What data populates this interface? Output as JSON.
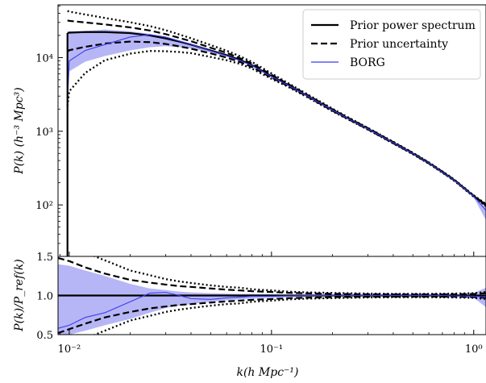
{
  "chart_data": [
    {
      "type": "line",
      "panel": "top",
      "xlabel": "",
      "ylabel": "P(k) (h⁻³ Mpc³)",
      "x_scale": "log",
      "y_scale": "log",
      "xlim": [
        0.0088,
        1.15
      ],
      "ylim": [
        20,
        52000
      ],
      "y_tick_labels": [
        "10²",
        "10³",
        "10⁴"
      ],
      "grid": false,
      "legend_position": "top-right",
      "x": [
        0.0098,
        0.01,
        0.012,
        0.015,
        0.02,
        0.025,
        0.03,
        0.035,
        0.04,
        0.05,
        0.06,
        0.07,
        0.08,
        0.1,
        0.12,
        0.15,
        0.2,
        0.25,
        0.3,
        0.4,
        0.5,
        0.6,
        0.7,
        0.8,
        1.0,
        1.15
      ],
      "series": [
        {
          "name": "Prior power spectrum",
          "style": "solid",
          "color": "#000000",
          "values": [
            21500,
            21800,
            22200,
            22200,
            21500,
            20000,
            18200,
            16500,
            15000,
            12500,
            10800,
            9300,
            7900,
            5600,
            4300,
            3050,
            1950,
            1400,
            1080,
            700,
            500,
            370,
            280,
            218,
            132,
            100
          ]
        },
        {
          "name": "Prior uncertainty",
          "style": "dashed",
          "color": "#000000",
          "values_upper": [
            32000,
            31500,
            30000,
            28200,
            25700,
            23300,
            20800,
            18500,
            16700,
            13600,
            11600,
            9800,
            8300,
            5850,
            4420,
            3120,
            1990,
            1425,
            1100,
            712,
            507,
            374,
            283,
            220,
            133,
            100
          ],
          "values_lower": [
            12000,
            12600,
            14000,
            15500,
            16500,
            16200,
            15300,
            14200,
            13200,
            11400,
            10000,
            8700,
            7450,
            5350,
            4150,
            2970,
            1900,
            1375,
            1060,
            688,
            493,
            366,
            277,
            216,
            131,
            99
          ]
        },
        {
          "name": "",
          "style": "dotted",
          "color": "#000000",
          "values_upper": [
            43000,
            42000,
            38500,
            34500,
            30200,
            26800,
            23500,
            20600,
            18300,
            14800,
            12400,
            10400,
            8750,
            6100,
            4550,
            3200,
            2030,
            1450,
            1110,
            720,
            512,
            378,
            286,
            222,
            135,
            103
          ],
          "values_lower": [
            2200,
            3500,
            6200,
            9200,
            11300,
            12300,
            12200,
            11900,
            11500,
            10200,
            9200,
            8200,
            7100,
            5150,
            4050,
            2910,
            1870,
            1360,
            1050,
            682,
            488,
            362,
            274,
            213,
            129,
            96
          ]
        },
        {
          "name": "BORG",
          "style": "solid",
          "color": "#3b3bf0",
          "band_color": "#a9a9f5",
          "values": [
            2500,
            9000,
            12500,
            15000,
            19000,
            20500,
            19000,
            16800,
            15200,
            12300,
            10600,
            9100,
            7800,
            5500,
            4250,
            3030,
            1940,
            1395,
            1075,
            698,
            498,
            369,
            279,
            217,
            131,
            84
          ],
          "band_upper": [
            22500,
            22800,
            23000,
            24000,
            22800,
            21000,
            18500,
            16300,
            14800,
            12300,
            10600,
            9150,
            7850,
            5580,
            4300,
            3060,
            1960,
            1410,
            1090,
            705,
            505,
            374,
            284,
            222,
            135,
            106
          ],
          "band_lower": [
            2300,
            6500,
            8800,
            10500,
            12500,
            13800,
            14300,
            13900,
            13300,
            11700,
            10300,
            8900,
            7700,
            5450,
            4200,
            3000,
            1920,
            1385,
            1070,
            694,
            495,
            365,
            275,
            212,
            126,
            62
          ]
        }
      ]
    },
    {
      "type": "line",
      "panel": "bottom",
      "xlabel": "k(h Mpc⁻¹)",
      "ylabel": "P(k)/P_ref(k)",
      "x_scale": "log",
      "y_scale": "linear",
      "xlim": [
        0.0088,
        1.15
      ],
      "ylim": [
        0.5,
        1.5
      ],
      "x_tick_labels": [
        "10⁻²",
        "10⁻¹",
        "10⁰"
      ],
      "y_ticks": [
        0.5,
        1.0,
        1.5
      ],
      "y_tick_labels": [
        "0.5",
        "1.0",
        "1.5"
      ],
      "grid": false,
      "x": [
        0.0088,
        0.01,
        0.012,
        0.015,
        0.02,
        0.025,
        0.03,
        0.035,
        0.04,
        0.05,
        0.06,
        0.07,
        0.08,
        0.1,
        0.12,
        0.15,
        0.2,
        0.25,
        0.3,
        0.4,
        0.5,
        0.6,
        0.7,
        0.8,
        1.0,
        1.15
      ],
      "series": [
        {
          "name": "Prior power spectrum",
          "style": "solid",
          "color": "#000000",
          "values": [
            1.0,
            1.0,
            1.0,
            1.0,
            1.0,
            1.0,
            1.0,
            1.0,
            1.0,
            1.0,
            1.0,
            1.0,
            1.0,
            1.0,
            1.0,
            1.0,
            1.0,
            1.0,
            1.0,
            1.0,
            1.0,
            1.0,
            1.0,
            1.0,
            1.0,
            1.0
          ]
        },
        {
          "name": "Prior uncertainty",
          "style": "dashed",
          "color": "#000000",
          "values_upper": [
            1.48,
            1.44,
            1.36,
            1.28,
            1.2,
            1.165,
            1.14,
            1.12,
            1.11,
            1.09,
            1.075,
            1.065,
            1.055,
            1.045,
            1.035,
            1.028,
            1.022,
            1.018,
            1.016,
            1.015,
            1.015,
            1.015,
            1.015,
            1.016,
            1.02,
            1.03
          ],
          "values_lower": [
            0.52,
            0.57,
            0.64,
            0.72,
            0.79,
            0.835,
            0.86,
            0.88,
            0.89,
            0.91,
            0.925,
            0.935,
            0.945,
            0.955,
            0.965,
            0.972,
            0.978,
            0.982,
            0.984,
            0.985,
            0.985,
            0.985,
            0.985,
            0.984,
            0.98,
            0.97
          ]
        },
        {
          "name": "",
          "style": "dotted",
          "color": "#000000",
          "values_upper": [
            1.75,
            1.65,
            1.55,
            1.45,
            1.32,
            1.26,
            1.21,
            1.18,
            1.16,
            1.13,
            1.11,
            1.1,
            1.08,
            1.065,
            1.05,
            1.04,
            1.033,
            1.028,
            1.025,
            1.022,
            1.022,
            1.022,
            1.023,
            1.025,
            1.03,
            1.045
          ],
          "values_lower": [
            0.25,
            0.35,
            0.45,
            0.55,
            0.68,
            0.74,
            0.79,
            0.82,
            0.84,
            0.87,
            0.89,
            0.9,
            0.92,
            0.935,
            0.95,
            0.96,
            0.967,
            0.972,
            0.975,
            0.978,
            0.978,
            0.978,
            0.977,
            0.975,
            0.97,
            0.955
          ],
          "wiggle": true
        },
        {
          "name": "BORG",
          "style": "solid",
          "color": "#3b3bf0",
          "band_color": "#a9a9f5",
          "values": [
            0.58,
            0.62,
            0.72,
            0.78,
            0.92,
            1.03,
            1.04,
            1.0,
            0.96,
            0.95,
            0.97,
            0.98,
            0.99,
            0.99,
            0.995,
            1.0,
            1.0,
            1.0,
            1.0,
            1.0,
            1.0,
            1.0,
            1.0,
            0.995,
            0.99,
            0.98
          ],
          "band_upper": [
            1.4,
            1.38,
            1.32,
            1.25,
            1.15,
            1.09,
            1.07,
            1.05,
            1.04,
            1.03,
            1.025,
            1.02,
            1.02,
            1.015,
            1.012,
            1.01,
            1.008,
            1.008,
            1.008,
            1.008,
            1.008,
            1.01,
            1.012,
            1.015,
            1.03,
            1.1
          ],
          "band_lower": [
            0.45,
            0.5,
            0.55,
            0.62,
            0.7,
            0.78,
            0.84,
            0.87,
            0.89,
            0.92,
            0.94,
            0.95,
            0.96,
            0.97,
            0.978,
            0.985,
            0.99,
            0.992,
            0.992,
            0.992,
            0.992,
            0.99,
            0.988,
            0.985,
            0.97,
            0.85
          ]
        }
      ]
    }
  ]
}
